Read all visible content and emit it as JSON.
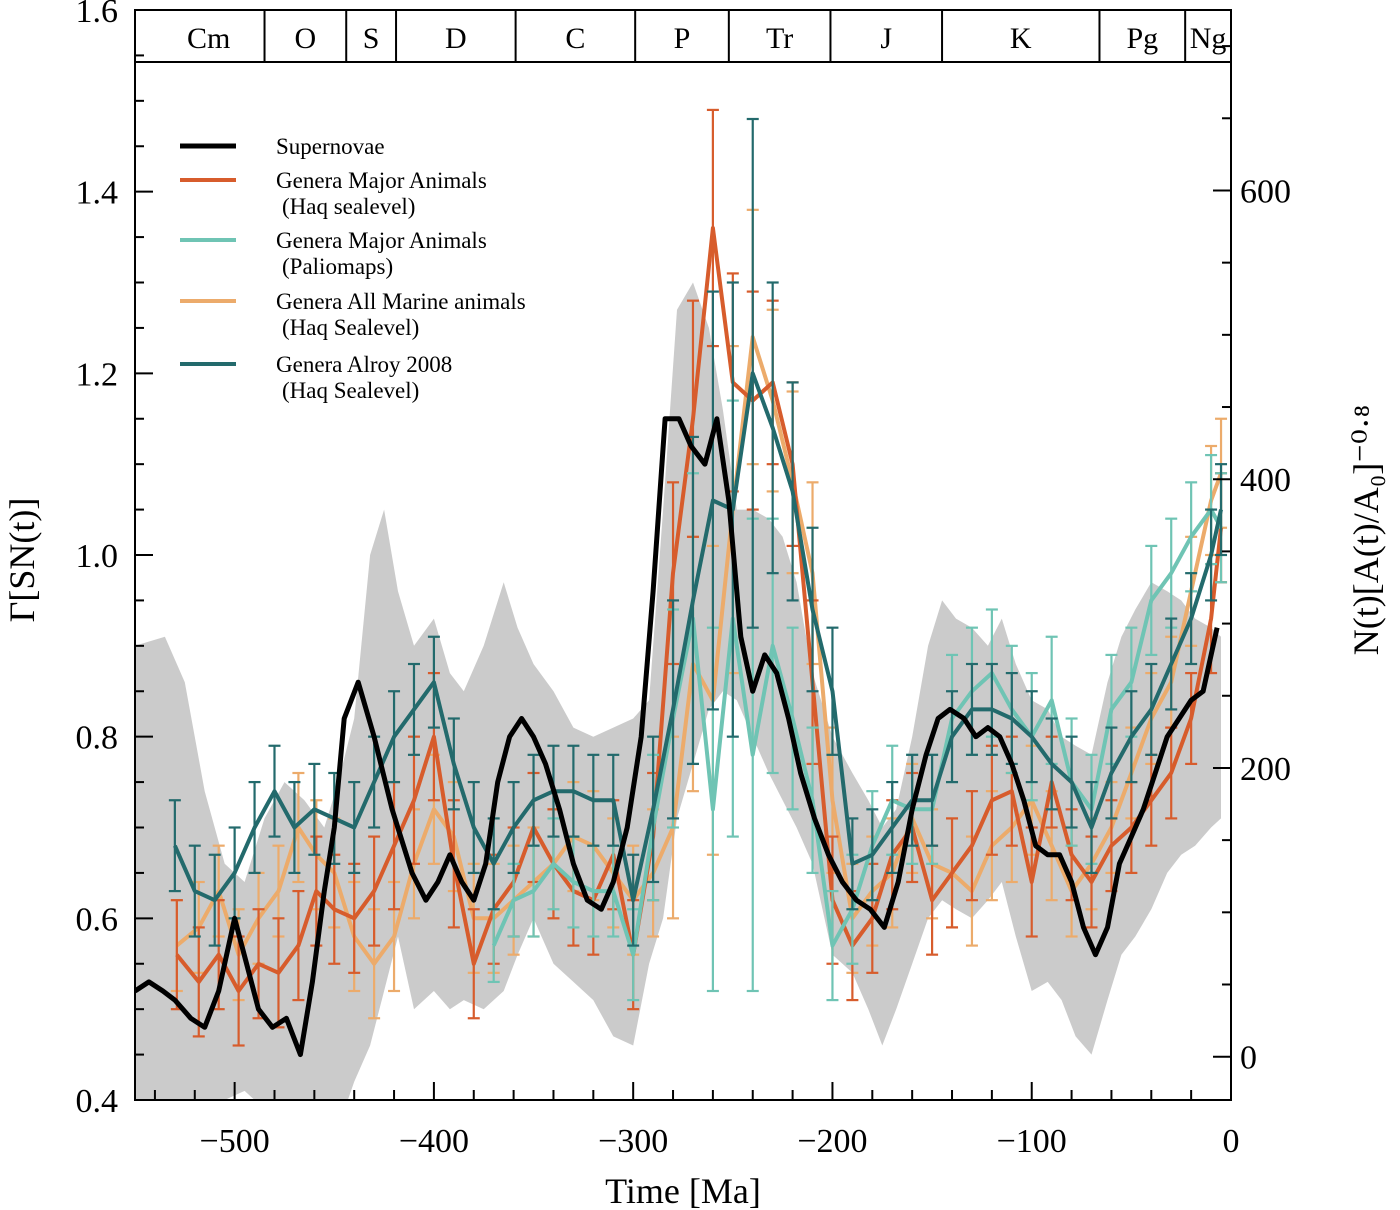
{
  "chart_data": {
    "type": "line",
    "xlabel": "Time [Ma]",
    "ylabel_left": "Γ[SN(t)]",
    "ylabel_right": "N(t)[A(t)/A₀]⁻⁰·⁸",
    "xlim": [
      -550,
      0
    ],
    "ylim_left": [
      0.4,
      1.6
    ],
    "ylim_right": [
      -30,
      725
    ],
    "x_ticks": [
      -500,
      -400,
      -300,
      -200,
      -100,
      0
    ],
    "x_tick_labels": [
      "−500",
      "−400",
      "−300",
      "−200",
      "−100",
      "0"
    ],
    "y_ticks_left": [
      0.4,
      0.6,
      0.8,
      1.0,
      1.2,
      1.4,
      1.6
    ],
    "y_tick_labels_left": [
      "0.4",
      "0.6",
      "0.8",
      "1.0",
      "1.2",
      "1.4",
      "1.6"
    ],
    "y_ticks_right": [
      0,
      200,
      400,
      600
    ],
    "y_tick_labels_right": [
      "0",
      "200",
      "400",
      "600"
    ],
    "periods": [
      {
        "label": "Cm",
        "start": -541,
        "end": -485
      },
      {
        "label": "O",
        "start": -485,
        "end": -444
      },
      {
        "label": "S",
        "start": -444,
        "end": -419
      },
      {
        "label": "D",
        "start": -419,
        "end": -359
      },
      {
        "label": "C",
        "start": -359,
        "end": -299
      },
      {
        "label": "P",
        "start": -299,
        "end": -252
      },
      {
        "label": "Tr",
        "start": -252,
        "end": -201
      },
      {
        "label": "J",
        "start": -201,
        "end": -145
      },
      {
        "label": "K",
        "start": -145,
        "end": -66
      },
      {
        "label": "Pg",
        "start": -66,
        "end": -23
      },
      {
        "label": "Ng",
        "start": -23,
        "end": 0
      }
    ],
    "band": {
      "color": "#cbcbcb",
      "x": [
        -550,
        -535,
        -525,
        -515,
        -505,
        -495,
        -485,
        -475,
        -465,
        -455,
        -448,
        -440,
        -432,
        -425,
        -418,
        -410,
        -400,
        -392,
        -385,
        -375,
        -365,
        -358,
        -350,
        -340,
        -330,
        -320,
        -310,
        -300,
        -292,
        -285,
        -278,
        -270,
        -262,
        -255,
        -248,
        -240,
        -232,
        -225,
        -218,
        -210,
        -200,
        -190,
        -182,
        -175,
        -168,
        -160,
        -152,
        -145,
        -138,
        -130,
        -122,
        -115,
        -108,
        -100,
        -92,
        -85,
        -78,
        -70,
        -62,
        -55,
        -48,
        -40,
        -32,
        -25,
        -18,
        -10,
        -5
      ],
      "upper": [
        0.9,
        0.91,
        0.86,
        0.74,
        0.66,
        0.64,
        0.71,
        0.75,
        0.73,
        0.7,
        0.75,
        0.82,
        1.0,
        1.05,
        0.96,
        0.9,
        0.93,
        0.87,
        0.85,
        0.9,
        0.97,
        0.92,
        0.88,
        0.85,
        0.81,
        0.8,
        0.81,
        0.82,
        0.84,
        1.05,
        1.27,
        1.3,
        1.25,
        1.16,
        1.05,
        1.05,
        1.04,
        1.02,
        0.97,
        0.87,
        0.8,
        0.76,
        0.73,
        0.7,
        0.72,
        0.8,
        0.9,
        0.95,
        0.93,
        0.92,
        0.9,
        0.93,
        0.88,
        0.84,
        0.83,
        0.8,
        0.79,
        0.78,
        0.86,
        0.91,
        0.94,
        0.97,
        0.96,
        0.95,
        0.93,
        0.92,
        0.91
      ],
      "lower": [
        0.39,
        0.39,
        0.39,
        0.4,
        0.4,
        0.41,
        0.39,
        0.38,
        0.38,
        0.37,
        0.37,
        0.42,
        0.46,
        0.52,
        0.58,
        0.5,
        0.52,
        0.5,
        0.51,
        0.5,
        0.52,
        0.56,
        0.6,
        0.55,
        0.53,
        0.51,
        0.47,
        0.46,
        0.55,
        0.6,
        0.71,
        0.77,
        0.83,
        0.85,
        0.84,
        0.8,
        0.76,
        0.73,
        0.7,
        0.66,
        0.56,
        0.54,
        0.5,
        0.46,
        0.5,
        0.55,
        0.6,
        0.62,
        0.61,
        0.6,
        0.62,
        0.64,
        0.58,
        0.52,
        0.53,
        0.51,
        0.47,
        0.45,
        0.51,
        0.56,
        0.58,
        0.61,
        0.65,
        0.67,
        0.68,
        0.7,
        0.71
      ]
    },
    "series": [
      {
        "name": "Genera All Marine animals",
        "name_line2": "(Haq Sealevel)",
        "color": "#ecab6b",
        "x": [
          -529,
          -518,
          -508,
          -498,
          -488,
          -478,
          -468,
          -459,
          -450,
          -440,
          -430,
          -420,
          -410,
          -400,
          -390,
          -380,
          -370,
          -360,
          -350,
          -340,
          -330,
          -320,
          -310,
          -300,
          -290,
          -280,
          -270,
          -260,
          -250,
          -240,
          -230,
          -220,
          -210,
          -200,
          -190,
          -180,
          -170,
          -160,
          -150,
          -140,
          -130,
          -120,
          -110,
          -100,
          -90,
          -80,
          -70,
          -60,
          -50,
          -40,
          -30,
          -20,
          -10,
          -5
        ],
        "y": [
          0.57,
          0.59,
          0.63,
          0.56,
          0.6,
          0.63,
          0.7,
          0.67,
          0.65,
          0.58,
          0.55,
          0.58,
          0.66,
          0.72,
          0.69,
          0.6,
          0.6,
          0.62,
          0.64,
          0.66,
          0.69,
          0.68,
          0.65,
          0.62,
          0.65,
          0.7,
          0.88,
          0.84,
          1.05,
          1.24,
          1.17,
          1.08,
          0.98,
          0.73,
          0.6,
          0.63,
          0.65,
          0.71,
          0.66,
          0.65,
          0.63,
          0.68,
          0.7,
          0.73,
          0.68,
          0.63,
          0.66,
          0.7,
          0.76,
          0.82,
          0.86,
          0.96,
          1.06,
          1.09
        ],
        "err": [
          0.05,
          0.05,
          0.05,
          0.05,
          0.05,
          0.05,
          0.06,
          0.06,
          0.06,
          0.06,
          0.06,
          0.06,
          0.06,
          0.06,
          0.06,
          0.06,
          0.06,
          0.06,
          0.06,
          0.06,
          0.06,
          0.06,
          0.06,
          0.06,
          0.07,
          0.1,
          0.14,
          0.17,
          0.18,
          0.14,
          0.1,
          0.1,
          0.1,
          0.08,
          0.06,
          0.06,
          0.06,
          0.06,
          0.06,
          0.06,
          0.06,
          0.06,
          0.06,
          0.06,
          0.06,
          0.05,
          0.05,
          0.05,
          0.05,
          0.05,
          0.05,
          0.06,
          0.06,
          0.06
        ]
      },
      {
        "name": "Genera Major Animals",
        "name_line2": "(Haq sealevel)",
        "color": "#d75c2c",
        "x": [
          -529,
          -518,
          -508,
          -498,
          -488,
          -478,
          -468,
          -459,
          -450,
          -440,
          -430,
          -420,
          -410,
          -400,
          -390,
          -380,
          -370,
          -360,
          -350,
          -340,
          -330,
          -320,
          -310,
          -300,
          -290,
          -280,
          -270,
          -260,
          -250,
          -240,
          -230,
          -220,
          -210,
          -200,
          -190,
          -180,
          -170,
          -160,
          -150,
          -140,
          -130,
          -120,
          -110,
          -100,
          -90,
          -80,
          -70,
          -60,
          -50,
          -40,
          -30,
          -20,
          -10,
          -5
        ],
        "y": [
          0.56,
          0.53,
          0.56,
          0.52,
          0.55,
          0.54,
          0.57,
          0.63,
          0.61,
          0.6,
          0.63,
          0.68,
          0.73,
          0.8,
          0.66,
          0.55,
          0.61,
          0.64,
          0.7,
          0.66,
          0.63,
          0.62,
          0.67,
          0.56,
          0.69,
          0.98,
          1.15,
          1.36,
          1.19,
          1.17,
          1.19,
          1.1,
          0.86,
          0.62,
          0.57,
          0.6,
          0.67,
          0.7,
          0.62,
          0.65,
          0.68,
          0.73,
          0.74,
          0.64,
          0.75,
          0.67,
          0.64,
          0.68,
          0.7,
          0.73,
          0.76,
          0.82,
          0.93,
          1.03
        ],
        "err": [
          0.06,
          0.06,
          0.06,
          0.06,
          0.06,
          0.06,
          0.06,
          0.06,
          0.06,
          0.06,
          0.06,
          0.07,
          0.07,
          0.07,
          0.07,
          0.06,
          0.06,
          0.06,
          0.06,
          0.06,
          0.06,
          0.06,
          0.06,
          0.06,
          0.07,
          0.1,
          0.13,
          0.13,
          0.12,
          0.12,
          0.09,
          0.09,
          0.09,
          0.07,
          0.06,
          0.06,
          0.06,
          0.06,
          0.06,
          0.06,
          0.06,
          0.06,
          0.06,
          0.06,
          0.05,
          0.05,
          0.05,
          0.05,
          0.05,
          0.05,
          0.05,
          0.05,
          0.06,
          0.06
        ]
      },
      {
        "name": "Genera Major Animals",
        "name_line2": "(Paliomaps)",
        "color": "#6fc4b4",
        "x": [
          -370,
          -360,
          -350,
          -340,
          -330,
          -320,
          -310,
          -300,
          -290,
          -280,
          -270,
          -260,
          -250,
          -240,
          -230,
          -220,
          -210,
          -200,
          -190,
          -180,
          -170,
          -160,
          -150,
          -140,
          -130,
          -120,
          -110,
          -100,
          -90,
          -80,
          -70,
          -60,
          -50,
          -40,
          -30,
          -20,
          -10,
          -5
        ],
        "y": [
          0.57,
          0.62,
          0.63,
          0.66,
          0.64,
          0.63,
          0.63,
          0.56,
          0.7,
          0.82,
          0.93,
          0.72,
          0.93,
          0.78,
          0.9,
          0.82,
          0.73,
          0.57,
          0.61,
          0.68,
          0.73,
          0.72,
          0.72,
          0.82,
          0.85,
          0.87,
          0.83,
          0.8,
          0.84,
          0.75,
          0.72,
          0.83,
          0.86,
          0.95,
          0.98,
          1.02,
          1.05,
          1.03
        ],
        "err": [
          0.04,
          0.04,
          0.05,
          0.05,
          0.05,
          0.05,
          0.05,
          0.05,
          0.08,
          0.12,
          0.16,
          0.2,
          0.24,
          0.26,
          0.14,
          0.1,
          0.08,
          0.06,
          0.06,
          0.06,
          0.06,
          0.06,
          0.06,
          0.07,
          0.07,
          0.07,
          0.07,
          0.07,
          0.07,
          0.07,
          0.06,
          0.06,
          0.06,
          0.06,
          0.06,
          0.06,
          0.06,
          0.06
        ]
      },
      {
        "name": "Genera Alroy 2008",
        "name_line2": "(Haq Sealevel)",
        "color": "#236a6c",
        "x": [
          -530,
          -520,
          -510,
          -500,
          -490,
          -480,
          -470,
          -460,
          -450,
          -440,
          -430,
          -420,
          -410,
          -400,
          -390,
          -380,
          -370,
          -360,
          -350,
          -340,
          -330,
          -320,
          -310,
          -300,
          -290,
          -280,
          -270,
          -260,
          -250,
          -240,
          -230,
          -220,
          -210,
          -200,
          -190,
          -180,
          -170,
          -160,
          -150,
          -140,
          -130,
          -120,
          -110,
          -100,
          -90,
          -80,
          -70,
          -60,
          -50,
          -40,
          -30,
          -20,
          -10,
          -5
        ],
        "y": [
          0.68,
          0.63,
          0.62,
          0.65,
          0.7,
          0.74,
          0.7,
          0.72,
          0.71,
          0.7,
          0.75,
          0.8,
          0.83,
          0.86,
          0.77,
          0.7,
          0.66,
          0.7,
          0.73,
          0.74,
          0.74,
          0.73,
          0.73,
          0.62,
          0.72,
          0.83,
          0.95,
          1.06,
          1.05,
          1.2,
          1.14,
          1.07,
          0.94,
          0.85,
          0.66,
          0.67,
          0.7,
          0.73,
          0.73,
          0.8,
          0.83,
          0.83,
          0.82,
          0.8,
          0.77,
          0.75,
          0.7,
          0.76,
          0.8,
          0.83,
          0.88,
          0.93,
          1.0,
          1.05
        ],
        "err": [
          0.05,
          0.05,
          0.05,
          0.05,
          0.05,
          0.05,
          0.05,
          0.05,
          0.05,
          0.05,
          0.05,
          0.05,
          0.05,
          0.05,
          0.05,
          0.05,
          0.05,
          0.05,
          0.05,
          0.05,
          0.05,
          0.05,
          0.05,
          0.05,
          0.08,
          0.12,
          0.18,
          0.23,
          0.25,
          0.28,
          0.16,
          0.12,
          0.09,
          0.07,
          0.05,
          0.05,
          0.05,
          0.05,
          0.05,
          0.05,
          0.05,
          0.05,
          0.05,
          0.05,
          0.05,
          0.05,
          0.05,
          0.05,
          0.05,
          0.05,
          0.05,
          0.05,
          0.05,
          0.05
        ]
      },
      {
        "name": "Supernovae",
        "name_line2": "",
        "color": "#000000",
        "x": [
          -550,
          -543,
          -536,
          -530,
          -522,
          -515,
          -508,
          -500,
          -494,
          -488,
          -481,
          -474,
          -467,
          -461,
          -455,
          -450,
          -445,
          -438,
          -430,
          -421,
          -411,
          -404,
          -398,
          -392,
          -386,
          -380,
          -374,
          -368,
          -362,
          -356,
          -350,
          -344,
          -337,
          -330,
          -323,
          -316,
          -310,
          -303,
          -296,
          -290,
          -284,
          -277,
          -271,
          -264,
          -258,
          -252,
          -246,
          -240,
          -234,
          -228,
          -222,
          -216,
          -209,
          -202,
          -195,
          -188,
          -181,
          -174,
          -167,
          -160,
          -153,
          -147,
          -141,
          -134,
          -128,
          -122,
          -116,
          -110,
          -104,
          -98,
          -92,
          -86,
          -80,
          -74,
          -68,
          -62,
          -56,
          -50,
          -44,
          -38,
          -32,
          -26,
          -20,
          -14,
          -7
        ],
        "y": [
          0.52,
          0.53,
          0.52,
          0.51,
          0.49,
          0.48,
          0.52,
          0.6,
          0.55,
          0.5,
          0.48,
          0.49,
          0.45,
          0.53,
          0.63,
          0.7,
          0.82,
          0.86,
          0.8,
          0.72,
          0.65,
          0.62,
          0.64,
          0.67,
          0.64,
          0.62,
          0.66,
          0.75,
          0.8,
          0.82,
          0.8,
          0.77,
          0.72,
          0.66,
          0.62,
          0.61,
          0.64,
          0.7,
          0.8,
          0.96,
          1.15,
          1.15,
          1.12,
          1.1,
          1.15,
          1.06,
          0.91,
          0.85,
          0.89,
          0.87,
          0.82,
          0.76,
          0.71,
          0.67,
          0.64,
          0.62,
          0.61,
          0.59,
          0.64,
          0.72,
          0.78,
          0.82,
          0.83,
          0.82,
          0.8,
          0.81,
          0.8,
          0.77,
          0.73,
          0.68,
          0.67,
          0.67,
          0.64,
          0.59,
          0.56,
          0.59,
          0.66,
          0.69,
          0.72,
          0.76,
          0.8,
          0.82,
          0.84,
          0.85,
          0.92
        ],
        "err": []
      }
    ],
    "legend_order": [
      4,
      1,
      2,
      0,
      3
    ],
    "legend_position": "top-left"
  }
}
